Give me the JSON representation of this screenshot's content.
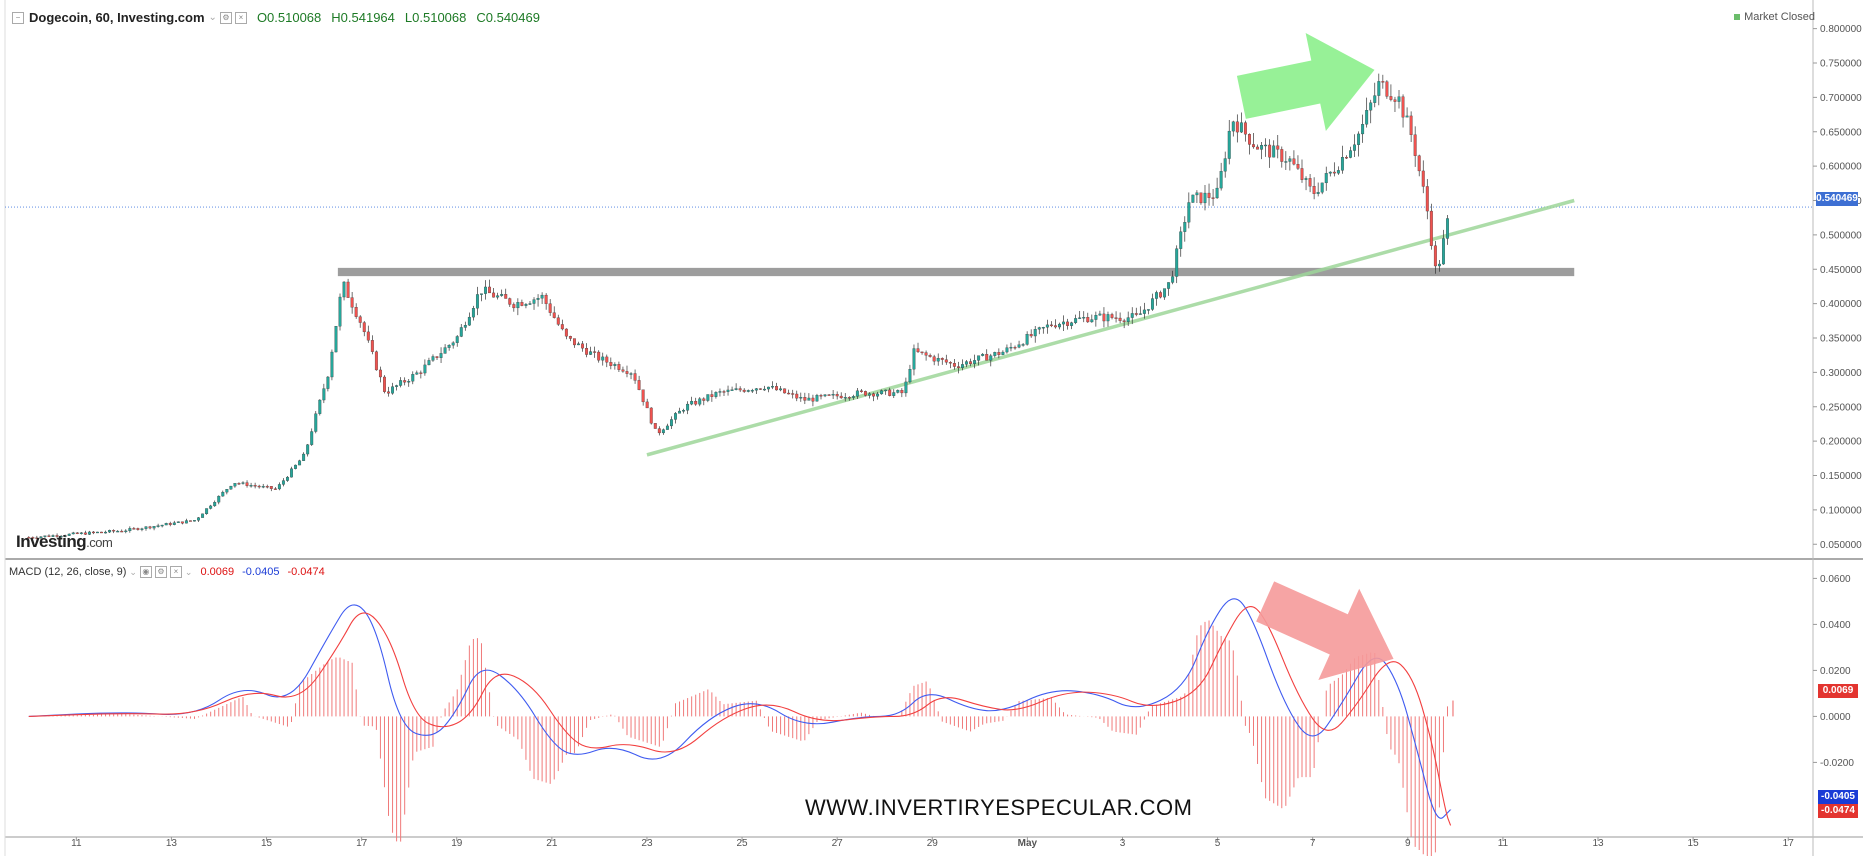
{
  "header": {
    "title": "Dogecoin, 60, Investing.com",
    "open": "O0.510068",
    "high": "H0.541964",
    "low": "L0.510068",
    "close": "C0.540469",
    "market_status": "Market Closed"
  },
  "logo": {
    "brand": "Investing",
    "suffix": ".com"
  },
  "watermark": "WWW.INVERTIRYESPECULAR.COM",
  "macd_header": {
    "label": "MACD (12, 26, close, 9)",
    "hist": "0.0069",
    "macd": "-0.0405",
    "signal": "-0.0474"
  },
  "badges": {
    "price": "0.540469",
    "hist": "0.0069",
    "macd": "-0.0405",
    "signal": "-0.0474"
  },
  "colors": {
    "up": "#26a69a",
    "down": "#ef5350",
    "macd_line": "#3f5bf0",
    "signal_line": "#f23f3f",
    "trendline": "#9ed69a",
    "resistance_band": "#8c8c8c",
    "arrow_up": "#8cf08c",
    "arrow_down": "#f59a9a"
  },
  "chart_data": [
    {
      "type": "candlestick",
      "pane": "price",
      "title": "Dogecoin, 60, Investing.com",
      "x_axis_labels": [
        "11",
        "13",
        "15",
        "17",
        "19",
        "21",
        "23",
        "25",
        "27",
        "29",
        "May",
        "3",
        "5",
        "7",
        "9",
        "11",
        "13",
        "15",
        "17"
      ],
      "y_axis_labels": [
        "0.050000",
        "0.100000",
        "0.150000",
        "0.200000",
        "0.250000",
        "0.300000",
        "0.350000",
        "0.400000",
        "0.450000",
        "0.500000",
        "0.550000",
        "0.600000",
        "0.650000",
        "0.700000",
        "0.750000",
        "0.800000"
      ],
      "ylim": [
        0.03,
        0.83
      ],
      "last_price": 0.540469,
      "price_path": [
        {
          "day": 10.0,
          "value": 0.06
        },
        {
          "day": 12.0,
          "value": 0.07
        },
        {
          "day": 13.5,
          "value": 0.085
        },
        {
          "day": 14.3,
          "value": 0.14
        },
        {
          "day": 15.2,
          "value": 0.13
        },
        {
          "day": 15.8,
          "value": 0.18
        },
        {
          "day": 16.3,
          "value": 0.3
        },
        {
          "day": 16.6,
          "value": 0.43
        },
        {
          "day": 17.0,
          "value": 0.37
        },
        {
          "day": 17.5,
          "value": 0.27
        },
        {
          "day": 18.2,
          "value": 0.3
        },
        {
          "day": 19.0,
          "value": 0.35
        },
        {
          "day": 19.5,
          "value": 0.42
        },
        {
          "day": 20.2,
          "value": 0.4
        },
        {
          "day": 20.8,
          "value": 0.41
        },
        {
          "day": 21.3,
          "value": 0.35
        },
        {
          "day": 22.0,
          "value": 0.32
        },
        {
          "day": 22.7,
          "value": 0.3
        },
        {
          "day": 23.2,
          "value": 0.21
        },
        {
          "day": 23.8,
          "value": 0.25
        },
        {
          "day": 24.5,
          "value": 0.27
        },
        {
          "day": 25.5,
          "value": 0.28
        },
        {
          "day": 26.3,
          "value": 0.26
        },
        {
          "day": 27.5,
          "value": 0.27
        },
        {
          "day": 28.4,
          "value": 0.27
        },
        {
          "day": 28.6,
          "value": 0.33
        },
        {
          "day": 29.5,
          "value": 0.31
        },
        {
          "day": 30.5,
          "value": 0.33
        },
        {
          "day": 31.5,
          "value": 0.37
        },
        {
          "day": 32.3,
          "value": 0.38
        },
        {
          "day": 33.3,
          "value": 0.38
        },
        {
          "day": 34.0,
          "value": 0.43
        },
        {
          "day": 34.4,
          "value": 0.55
        },
        {
          "day": 35.0,
          "value": 0.56
        },
        {
          "day": 35.3,
          "value": 0.67
        },
        {
          "day": 35.8,
          "value": 0.63
        },
        {
          "day": 36.5,
          "value": 0.61
        },
        {
          "day": 37.0,
          "value": 0.56
        },
        {
          "day": 37.5,
          "value": 0.6
        },
        {
          "day": 38.0,
          "value": 0.65
        },
        {
          "day": 38.4,
          "value": 0.72
        },
        {
          "day": 38.8,
          "value": 0.7
        },
        {
          "day": 39.1,
          "value": 0.64
        },
        {
          "day": 39.4,
          "value": 0.54
        },
        {
          "day": 39.6,
          "value": 0.44
        },
        {
          "day": 39.9,
          "value": 0.54
        }
      ],
      "trendline": {
        "from": {
          "day": 23.0,
          "value": 0.18
        },
        "to": {
          "day": 42.5,
          "value": 0.55
        }
      },
      "resistance_band": {
        "from_day": 16.5,
        "to_day": 42.5,
        "low": 0.44,
        "high": 0.452
      },
      "last_price_line": 0.540469,
      "annotations": [
        {
          "kind": "arrow",
          "direction": "up-right",
          "from": {
            "day": 35.5,
            "value": 0.7
          },
          "to": {
            "day": 38.3,
            "value": 0.74
          }
        }
      ]
    },
    {
      "type": "line",
      "pane": "macd",
      "title": "MACD (12, 26, close, 9)",
      "y_axis_labels": [
        "0.0600",
        "0.0400",
        "0.0200",
        "0.0000",
        "-0.0200"
      ],
      "ylim": [
        -0.052,
        0.068
      ],
      "series": [
        {
          "name": "MACD",
          "color": "#3f5bf0",
          "points": [
            {
              "day": 10.0,
              "value": 0.0
            },
            {
              "day": 12.0,
              "value": 0.002
            },
            {
              "day": 13.5,
              "value": 0.0
            },
            {
              "day": 14.5,
              "value": 0.014
            },
            {
              "day": 15.5,
              "value": 0.005
            },
            {
              "day": 16.3,
              "value": 0.035
            },
            {
              "day": 16.8,
              "value": 0.052
            },
            {
              "day": 17.3,
              "value": 0.04
            },
            {
              "day": 17.8,
              "value": -0.005
            },
            {
              "day": 18.5,
              "value": -0.01
            },
            {
              "day": 19.0,
              "value": 0.002
            },
            {
              "day": 19.5,
              "value": 0.024
            },
            {
              "day": 20.3,
              "value": 0.012
            },
            {
              "day": 21.0,
              "value": -0.012
            },
            {
              "day": 21.5,
              "value": -0.018
            },
            {
              "day": 22.3,
              "value": -0.012
            },
            {
              "day": 23.3,
              "value": -0.022
            },
            {
              "day": 24.3,
              "value": 0.0
            },
            {
              "day": 25.3,
              "value": 0.008
            },
            {
              "day": 26.3,
              "value": -0.005
            },
            {
              "day": 27.5,
              "value": 0.0
            },
            {
              "day": 28.3,
              "value": 0.0
            },
            {
              "day": 28.9,
              "value": 0.012
            },
            {
              "day": 29.8,
              "value": 0.003
            },
            {
              "day": 30.5,
              "value": 0.002
            },
            {
              "day": 31.5,
              "value": 0.012
            },
            {
              "day": 32.5,
              "value": 0.01
            },
            {
              "day": 33.3,
              "value": 0.002
            },
            {
              "day": 34.3,
              "value": 0.012
            },
            {
              "day": 34.8,
              "value": 0.038
            },
            {
              "day": 35.3,
              "value": 0.054
            },
            {
              "day": 35.7,
              "value": 0.045
            },
            {
              "day": 36.4,
              "value": 0.005
            },
            {
              "day": 37.0,
              "value": -0.013
            },
            {
              "day": 37.6,
              "value": 0.005
            },
            {
              "day": 38.3,
              "value": 0.03
            },
            {
              "day": 38.8,
              "value": 0.015
            },
            {
              "day": 39.2,
              "value": -0.015
            },
            {
              "day": 39.6,
              "value": -0.047
            },
            {
              "day": 39.9,
              "value": -0.0405
            }
          ]
        },
        {
          "name": "Signal",
          "color": "#f23f3f",
          "points": [
            {
              "day": 10.0,
              "value": 0.0
            },
            {
              "day": 12.0,
              "value": 0.0015
            },
            {
              "day": 13.5,
              "value": 0.0005
            },
            {
              "day": 14.7,
              "value": 0.012
            },
            {
              "day": 15.7,
              "value": 0.006
            },
            {
              "day": 16.5,
              "value": 0.03
            },
            {
              "day": 17.0,
              "value": 0.049
            },
            {
              "day": 17.6,
              "value": 0.035
            },
            {
              "day": 18.1,
              "value": 0.0
            },
            {
              "day": 18.7,
              "value": -0.006
            },
            {
              "day": 19.3,
              "value": 0.0
            },
            {
              "day": 19.8,
              "value": 0.021
            },
            {
              "day": 20.6,
              "value": 0.014
            },
            {
              "day": 21.3,
              "value": -0.008
            },
            {
              "day": 21.8,
              "value": -0.015
            },
            {
              "day": 22.6,
              "value": -0.011
            },
            {
              "day": 23.6,
              "value": -0.018
            },
            {
              "day": 24.6,
              "value": 0.0
            },
            {
              "day": 25.6,
              "value": 0.007
            },
            {
              "day": 26.6,
              "value": -0.003
            },
            {
              "day": 27.8,
              "value": 0.0
            },
            {
              "day": 28.6,
              "value": 0.0
            },
            {
              "day": 29.2,
              "value": 0.01
            },
            {
              "day": 30.1,
              "value": 0.004
            },
            {
              "day": 30.8,
              "value": 0.002
            },
            {
              "day": 31.8,
              "value": 0.011
            },
            {
              "day": 32.8,
              "value": 0.01
            },
            {
              "day": 33.6,
              "value": 0.003
            },
            {
              "day": 34.6,
              "value": 0.01
            },
            {
              "day": 35.1,
              "value": 0.032
            },
            {
              "day": 35.6,
              "value": 0.05
            },
            {
              "day": 36.0,
              "value": 0.044
            },
            {
              "day": 36.7,
              "value": 0.008
            },
            {
              "day": 37.3,
              "value": -0.01
            },
            {
              "day": 37.9,
              "value": 0.004
            },
            {
              "day": 38.6,
              "value": 0.027
            },
            {
              "day": 39.1,
              "value": 0.018
            },
            {
              "day": 39.5,
              "value": -0.01
            },
            {
              "day": 39.8,
              "value": -0.042
            },
            {
              "day": 39.9,
              "value": -0.0474
            }
          ]
        }
      ],
      "histogram_last": 0.0069,
      "annotations": [
        {
          "kind": "arrow",
          "direction": "down-right",
          "from": {
            "day": 36.0,
            "value": 0.05
          },
          "to": {
            "day": 38.7,
            "value": 0.025
          }
        }
      ]
    }
  ]
}
